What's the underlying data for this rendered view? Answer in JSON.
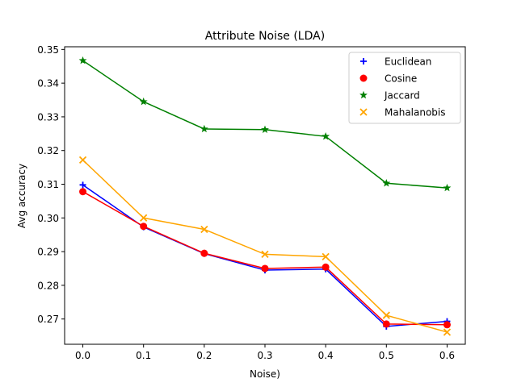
{
  "chart_data": {
    "type": "line",
    "title": "Attribute Noise (LDA)",
    "xlabel": "Noise)",
    "ylabel": "Avg accuracy",
    "x": [
      0.0,
      0.1,
      0.2,
      0.3,
      0.4,
      0.5,
      0.6
    ],
    "x_ticks": [
      "0.0",
      "0.1",
      "0.2",
      "0.3",
      "0.4",
      "0.5",
      "0.6"
    ],
    "y_ticks": [
      "0.27",
      "0.28",
      "0.29",
      "0.30",
      "0.31",
      "0.32",
      "0.33",
      "0.34",
      "0.35"
    ],
    "xlim": [
      -0.03,
      0.63
    ],
    "ylim": [
      0.2625,
      0.3508
    ],
    "grid": false,
    "legend_position": "top-right",
    "series": [
      {
        "name": "Euclidean",
        "color": "#0000ff",
        "marker": "plus",
        "values": [
          0.3098,
          0.2973,
          0.2894,
          0.2845,
          0.2848,
          0.2678,
          0.2693
        ]
      },
      {
        "name": "Cosine",
        "color": "#ff0000",
        "marker": "circle",
        "values": [
          0.3078,
          0.2975,
          0.2895,
          0.285,
          0.2854,
          0.2685,
          0.2683
        ]
      },
      {
        "name": "Jaccard",
        "color": "#008000",
        "marker": "star",
        "values": [
          0.3467,
          0.3345,
          0.3264,
          0.3262,
          0.3242,
          0.3103,
          0.3089
        ]
      },
      {
        "name": "Mahalanobis",
        "color": "#ffa500",
        "marker": "x",
        "values": [
          0.3172,
          0.3,
          0.2966,
          0.2892,
          0.2885,
          0.2711,
          0.2661
        ]
      }
    ]
  }
}
